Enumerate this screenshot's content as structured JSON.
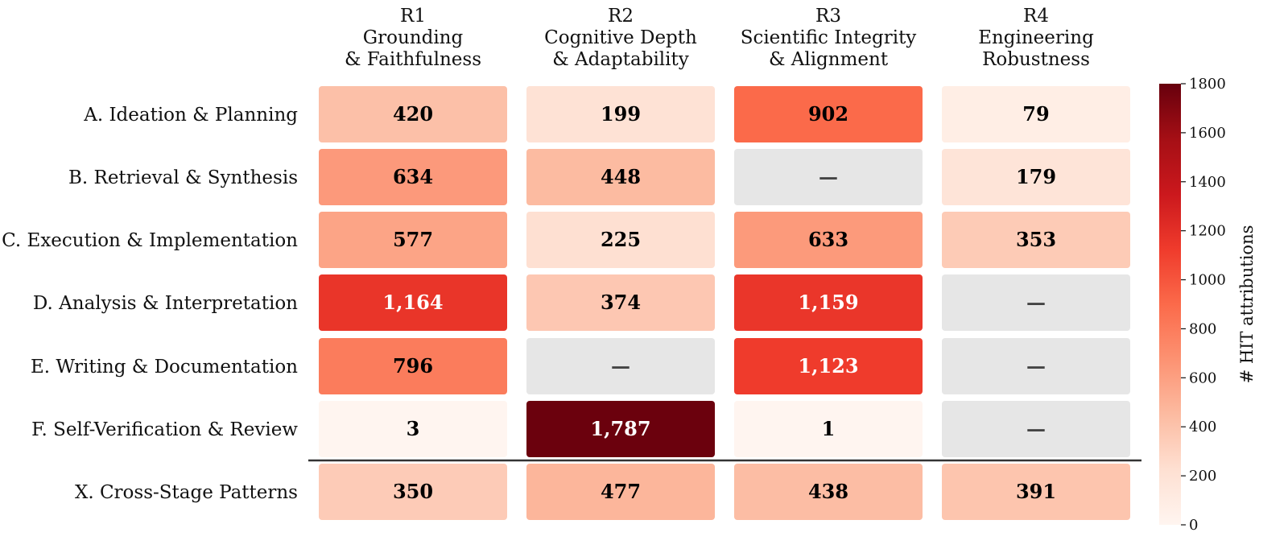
{
  "chart_data": {
    "type": "heatmap",
    "title": "",
    "columns": [
      {
        "code": "R1",
        "lines": [
          "Grounding",
          "& Faithfulness"
        ]
      },
      {
        "code": "R2",
        "lines": [
          "Cognitive Depth",
          "& Adaptability"
        ]
      },
      {
        "code": "R3",
        "lines": [
          "Scientific Integrity",
          "& Alignment"
        ]
      },
      {
        "code": "R4",
        "lines": [
          "Engineering",
          "Robustness"
        ]
      }
    ],
    "rows": [
      "A. Ideation & Planning",
      "B. Retrieval & Synthesis",
      "C. Execution & Implementation",
      "D. Analysis & Interpretation",
      "E. Writing & Documentation",
      "F. Self-Verification & Review",
      "X. Cross-Stage Patterns"
    ],
    "values": [
      [
        420,
        199,
        902,
        79
      ],
      [
        634,
        448,
        null,
        179
      ],
      [
        577,
        225,
        633,
        353
      ],
      [
        1164,
        374,
        1159,
        null
      ],
      [
        796,
        null,
        1123,
        null
      ],
      [
        3,
        1787,
        1,
        null
      ],
      [
        350,
        477,
        438,
        391
      ]
    ],
    "missing_label": "—",
    "separator_before_row": 6,
    "colorbar": {
      "label": "# HIT attributions",
      "range": [
        0,
        1800
      ],
      "ticks": [
        0,
        200,
        400,
        600,
        800,
        1000,
        1200,
        1400,
        1600,
        1800
      ],
      "colormap": "Reds",
      "missing_color": "#e6e6e6"
    }
  }
}
